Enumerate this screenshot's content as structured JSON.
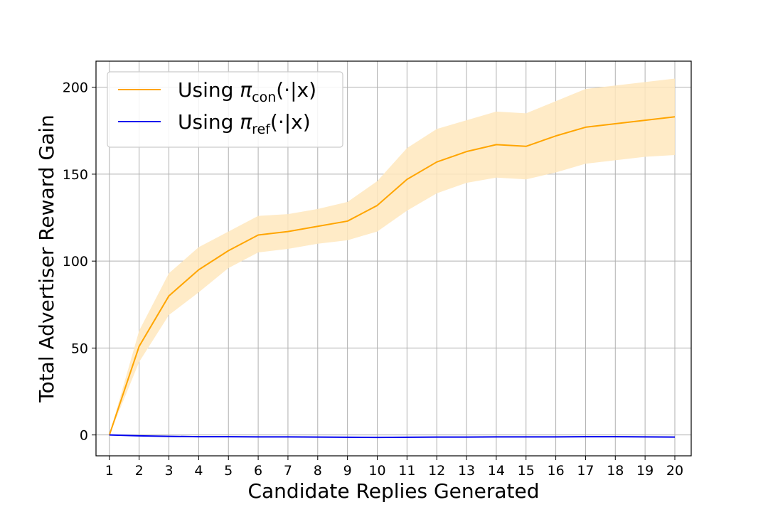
{
  "chart_data": {
    "type": "line",
    "xlabel": "Candidate Replies Generated",
    "ylabel": "Total Advertiser Reward Gain",
    "x": [
      1,
      2,
      3,
      4,
      5,
      6,
      7,
      8,
      9,
      10,
      11,
      12,
      13,
      14,
      15,
      16,
      17,
      18,
      19,
      20
    ],
    "xlim": [
      0.55,
      20.55
    ],
    "ylim": [
      -12,
      215
    ],
    "yticks": [
      0,
      50,
      100,
      150,
      200
    ],
    "grid": true,
    "legend_position": "top-left",
    "series": [
      {
        "name_main": "Using ",
        "name_symbol": "π",
        "name_sub": "con",
        "name_tail": "(·|x)",
        "color": "#FFA500",
        "band_color": "#FFE7BD",
        "values": [
          0,
          51,
          80,
          95,
          106,
          115,
          117,
          120,
          123,
          132,
          147,
          157,
          163,
          167,
          166,
          172,
          177,
          179,
          181,
          183
        ],
        "lower": [
          0,
          42,
          69,
          82,
          96,
          105,
          107,
          110,
          112,
          117,
          129,
          139,
          145,
          148,
          147,
          151,
          156,
          158,
          160,
          161
        ],
        "upper": [
          0,
          60,
          93,
          108,
          117,
          126,
          127,
          130,
          134,
          146,
          165,
          176,
          181,
          186,
          185,
          192,
          199,
          201,
          203,
          205
        ]
      },
      {
        "name_main": "Using ",
        "name_symbol": "π",
        "name_sub": "ref",
        "name_tail": "(·|x)",
        "color": "#0000EE",
        "values": [
          0,
          -0.5,
          -0.8,
          -1,
          -1,
          -1.1,
          -1.1,
          -1.2,
          -1.3,
          -1.4,
          -1.3,
          -1.2,
          -1.2,
          -1.1,
          -1.1,
          -1.1,
          -1,
          -1,
          -1.1,
          -1.2
        ]
      }
    ]
  }
}
